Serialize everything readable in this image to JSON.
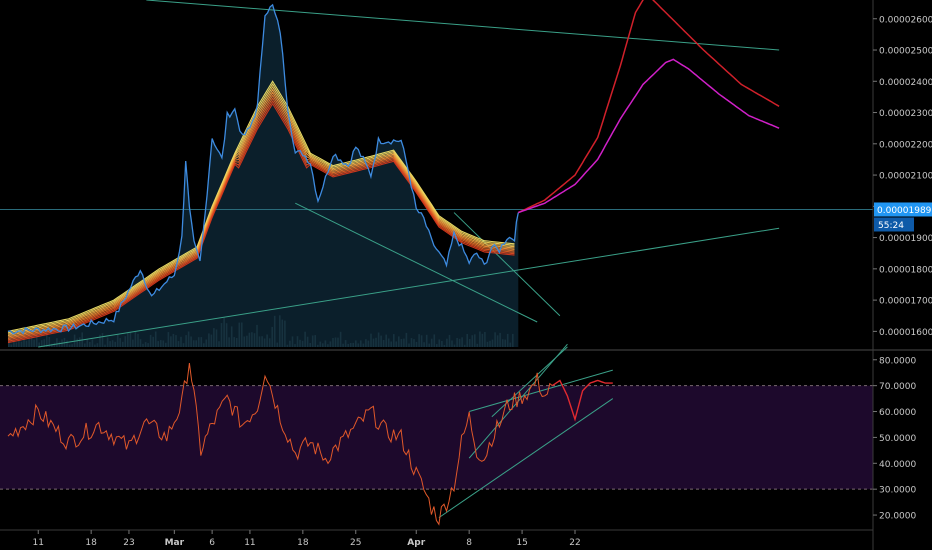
{
  "chart_data": [
    {
      "type": "line",
      "panel": "price",
      "title": "",
      "xlabel": "",
      "ylabel": "",
      "ylim": [
        1.55e-05,
        2.66e-05
      ],
      "scale": "linear",
      "grid": false,
      "y_ticks": [
        "0.000026000",
        "0.000025000",
        "0.000024000",
        "0.000023000",
        "0.000022000",
        "0.000021000",
        "0.000020000",
        "0.000019000",
        "0.000018000",
        "0.000017000",
        "0.000016000"
      ],
      "y_tick_values": [
        2.6e-05,
        2.5e-05,
        2.4e-05,
        2.3e-05,
        2.2e-05,
        2.1e-05,
        2e-05,
        1.9e-05,
        1.8e-05,
        1.7e-05,
        1.6e-05
      ],
      "last_price_label": "0.000019899",
      "last_price_value": 1.9899e-05,
      "countdown_label": "55:24",
      "colors": {
        "price": "#3d8be0",
        "ribbon_fast": "#f0e060",
        "ribbon_slow": "#e04020",
        "projection_red": "#d0202a",
        "projection_magenta": "#d020c8",
        "trendline": "#3aa088",
        "hline": "#2a6b7a",
        "accent_label": "#2196f3"
      },
      "price_anchors": [
        {
          "x": 0,
          "y": 1.6e-05
        },
        {
          "x": 8,
          "y": 1.61e-05
        },
        {
          "x": 14,
          "y": 1.64e-05
        },
        {
          "x": 17.5,
          "y": 1.8e-05
        },
        {
          "x": 19,
          "y": 1.71e-05
        },
        {
          "x": 21,
          "y": 1.76e-05
        },
        {
          "x": 22,
          "y": 1.78e-05
        },
        {
          "x": 23,
          "y": 1.9e-05
        },
        {
          "x": 23.5,
          "y": 2.15e-05
        },
        {
          "x": 24,
          "y": 1.99e-05
        },
        {
          "x": 24.6,
          "y": 1.88e-05
        },
        {
          "x": 25.4,
          "y": 1.82e-05
        },
        {
          "x": 26,
          "y": 1.96e-05
        },
        {
          "x": 27,
          "y": 2.22e-05
        },
        {
          "x": 28.3,
          "y": 2.15e-05
        },
        {
          "x": 29,
          "y": 2.29e-05
        },
        {
          "x": 30,
          "y": 2.31e-05
        },
        {
          "x": 31,
          "y": 2.22e-05
        },
        {
          "x": 32,
          "y": 2.25e-05
        },
        {
          "x": 33,
          "y": 2.32e-05
        },
        {
          "x": 34,
          "y": 2.62e-05
        },
        {
          "x": 35,
          "y": 2.64e-05
        },
        {
          "x": 36,
          "y": 2.56e-05
        },
        {
          "x": 37,
          "y": 2.32e-05
        },
        {
          "x": 38,
          "y": 2.17e-05
        },
        {
          "x": 39,
          "y": 2.17e-05
        },
        {
          "x": 40,
          "y": 2.14e-05
        },
        {
          "x": 41,
          "y": 2.02e-05
        },
        {
          "x": 42,
          "y": 2.09e-05
        },
        {
          "x": 43,
          "y": 2.17e-05
        },
        {
          "x": 44,
          "y": 2.15e-05
        },
        {
          "x": 45,
          "y": 2.13e-05
        },
        {
          "x": 46,
          "y": 2.19e-05
        },
        {
          "x": 47,
          "y": 2.15e-05
        },
        {
          "x": 48,
          "y": 2.1e-05
        },
        {
          "x": 49,
          "y": 2.21e-05
        },
        {
          "x": 50,
          "y": 2.21e-05
        },
        {
          "x": 51,
          "y": 2.21e-05
        },
        {
          "x": 52,
          "y": 2.21e-05
        },
        {
          "x": 53,
          "y": 2.11e-05
        },
        {
          "x": 54,
          "y": 1.99e-05
        },
        {
          "x": 55,
          "y": 1.96e-05
        },
        {
          "x": 56,
          "y": 1.89e-05
        },
        {
          "x": 57,
          "y": 1.85e-05
        },
        {
          "x": 58,
          "y": 1.81e-05
        },
        {
          "x": 59,
          "y": 1.91e-05
        },
        {
          "x": 60,
          "y": 1.87e-05
        },
        {
          "x": 61,
          "y": 1.82e-05
        },
        {
          "x": 62,
          "y": 1.85e-05
        },
        {
          "x": 63,
          "y": 1.81e-05
        },
        {
          "x": 64,
          "y": 1.87e-05
        },
        {
          "x": 65,
          "y": 1.86e-05
        },
        {
          "x": 66,
          "y": 1.9e-05
        },
        {
          "x": 67,
          "y": 1.9e-05
        },
        {
          "x": 67.5,
          "y": 1.98e-05
        }
      ],
      "ribbon_anchors": [
        {
          "x": 0,
          "y": 1.6e-05
        },
        {
          "x": 8,
          "y": 1.64e-05
        },
        {
          "x": 14,
          "y": 1.7e-05
        },
        {
          "x": 20,
          "y": 1.8e-05
        },
        {
          "x": 25,
          "y": 1.87e-05
        },
        {
          "x": 27,
          "y": 2e-05
        },
        {
          "x": 30,
          "y": 2.17e-05
        },
        {
          "x": 33,
          "y": 2.32e-05
        },
        {
          "x": 35,
          "y": 2.4e-05
        },
        {
          "x": 37,
          "y": 2.32e-05
        },
        {
          "x": 40,
          "y": 2.17e-05
        },
        {
          "x": 43,
          "y": 2.13e-05
        },
        {
          "x": 48,
          "y": 2.16e-05
        },
        {
          "x": 51,
          "y": 2.18e-05
        },
        {
          "x": 54,
          "y": 2.08e-05
        },
        {
          "x": 57,
          "y": 1.97e-05
        },
        {
          "x": 60,
          "y": 1.92e-05
        },
        {
          "x": 63,
          "y": 1.89e-05
        },
        {
          "x": 67,
          "y": 1.88e-05
        }
      ],
      "ribbon_spread": [
        0,
        1.5e-08,
        3e-08,
        4.5e-08,
        6e-08,
        7.5e-08,
        9e-08,
        1.05e-07,
        1.2e-07
      ],
      "projection_red": [
        {
          "x": 67.5,
          "y": 1.98e-05
        },
        {
          "x": 71,
          "y": 2.02e-05
        },
        {
          "x": 75,
          "y": 2.1e-05
        },
        {
          "x": 78,
          "y": 2.22e-05
        },
        {
          "x": 81,
          "y": 2.45e-05
        },
        {
          "x": 83,
          "y": 2.62e-05
        },
        {
          "x": 84.5,
          "y": 2.68e-05
        },
        {
          "x": 87,
          "y": 2.62e-05
        },
        {
          "x": 92,
          "y": 2.5e-05
        },
        {
          "x": 97,
          "y": 2.39e-05
        },
        {
          "x": 102,
          "y": 2.32e-05
        }
      ],
      "projection_magenta": [
        {
          "x": 67.5,
          "y": 1.98e-05
        },
        {
          "x": 71,
          "y": 2.01e-05
        },
        {
          "x": 75,
          "y": 2.07e-05
        },
        {
          "x": 78,
          "y": 2.15e-05
        },
        {
          "x": 81,
          "y": 2.28e-05
        },
        {
          "x": 84,
          "y": 2.39e-05
        },
        {
          "x": 87,
          "y": 2.46e-05
        },
        {
          "x": 88,
          "y": 2.47e-05
        },
        {
          "x": 90,
          "y": 2.44e-05
        },
        {
          "x": 94,
          "y": 2.36e-05
        },
        {
          "x": 98,
          "y": 2.29e-05
        },
        {
          "x": 102,
          "y": 2.25e-05
        }
      ],
      "trendlines": [
        {
          "from": {
            "x": 18.3,
            "y": 2.66e-05
          },
          "to": {
            "x": 102,
            "y": 2.5e-05
          }
        },
        {
          "from": {
            "x": 4,
            "y": 1.55e-05
          },
          "to": {
            "x": 102,
            "y": 1.93e-05
          }
        },
        {
          "from": {
            "x": 38,
            "y": 2.01e-05
          },
          "to": {
            "x": 70,
            "y": 1.63e-05
          }
        },
        {
          "from": {
            "x": 59,
            "y": 1.98e-05
          },
          "to": {
            "x": 73,
            "y": 1.65e-05
          }
        }
      ],
      "horizontal_lines": [
        1.9899e-05
      ]
    },
    {
      "type": "line",
      "panel": "rsi",
      "title": "",
      "ylim": [
        15,
        83
      ],
      "y_ticks": [
        "80.0000",
        "70.0000",
        "60.0000",
        "50.0000",
        "40.0000",
        "30.0000",
        "20.0000"
      ],
      "y_tick_values": [
        80,
        70,
        60,
        50,
        40,
        30,
        20
      ],
      "overbought": 70,
      "oversold": 30,
      "colors": {
        "rsi": "#e0582a",
        "band_fill": "#1f0a2e",
        "level_line": "#7a6a70",
        "rsi_projection": "#e02a30",
        "trend": "#3aa088"
      },
      "rsi_anchors": [
        {
          "x": 0,
          "y": 50
        },
        {
          "x": 4,
          "y": 60
        },
        {
          "x": 8,
          "y": 48
        },
        {
          "x": 12,
          "y": 55
        },
        {
          "x": 16,
          "y": 46
        },
        {
          "x": 18,
          "y": 56
        },
        {
          "x": 21,
          "y": 50
        },
        {
          "x": 23,
          "y": 63
        },
        {
          "x": 24,
          "y": 80
        },
        {
          "x": 25.5,
          "y": 45
        },
        {
          "x": 27,
          "y": 55
        },
        {
          "x": 29,
          "y": 65
        },
        {
          "x": 31,
          "y": 55
        },
        {
          "x": 33,
          "y": 62
        },
        {
          "x": 34,
          "y": 76
        },
        {
          "x": 36,
          "y": 58
        },
        {
          "x": 38,
          "y": 44
        },
        {
          "x": 40,
          "y": 48
        },
        {
          "x": 42,
          "y": 42
        },
        {
          "x": 46,
          "y": 54
        },
        {
          "x": 48,
          "y": 60
        },
        {
          "x": 50,
          "y": 52
        },
        {
          "x": 52,
          "y": 50
        },
        {
          "x": 54,
          "y": 36
        },
        {
          "x": 55,
          "y": 30
        },
        {
          "x": 56,
          "y": 23
        },
        {
          "x": 57,
          "y": 19
        },
        {
          "x": 58,
          "y": 25
        },
        {
          "x": 59,
          "y": 32
        },
        {
          "x": 60,
          "y": 48
        },
        {
          "x": 61,
          "y": 58
        },
        {
          "x": 62,
          "y": 45
        },
        {
          "x": 63,
          "y": 42
        },
        {
          "x": 64,
          "y": 50
        },
        {
          "x": 65,
          "y": 55
        },
        {
          "x": 66,
          "y": 62
        },
        {
          "x": 67,
          "y": 64
        },
        {
          "x": 68,
          "y": 66
        },
        {
          "x": 69,
          "y": 68
        },
        {
          "x": 70,
          "y": 72
        },
        {
          "x": 71,
          "y": 66
        },
        {
          "x": 72,
          "y": 70
        }
      ],
      "rsi_projection": [
        {
          "x": 72,
          "y": 70
        },
        {
          "x": 73,
          "y": 72
        },
        {
          "x": 74,
          "y": 66
        },
        {
          "x": 75,
          "y": 57
        },
        {
          "x": 76,
          "y": 68
        },
        {
          "x": 77,
          "y": 71
        },
        {
          "x": 78,
          "y": 72
        },
        {
          "x": 79,
          "y": 71
        },
        {
          "x": 80,
          "y": 71
        }
      ],
      "trendlines": [
        {
          "from": {
            "x": 57,
            "y": 19
          },
          "to": {
            "x": 80,
            "y": 65
          }
        },
        {
          "from": {
            "x": 61,
            "y": 42
          },
          "to": {
            "x": 74,
            "y": 86
          }
        },
        {
          "from": {
            "x": 61,
            "y": 60
          },
          "to": {
            "x": 80,
            "y": 76
          }
        },
        {
          "from": {
            "x": 64,
            "y": 58
          },
          "to": {
            "x": 74,
            "y": 85
          }
        }
      ]
    }
  ],
  "x_axis": {
    "labels": [
      {
        "label": "11",
        "x": 4
      },
      {
        "label": "18",
        "x": 11
      },
      {
        "label": "23",
        "x": 16
      },
      {
        "label": "Mar",
        "x": 22
      },
      {
        "label": "6",
        "x": 27
      },
      {
        "label": "11",
        "x": 32
      },
      {
        "label": "18",
        "x": 39
      },
      {
        "label": "25",
        "x": 46
      },
      {
        "label": "Apr",
        "x": 54
      },
      {
        "label": "8",
        "x": 61
      },
      {
        "label": "15",
        "x": 68
      },
      {
        "label": "22",
        "x": 75
      }
    ]
  }
}
